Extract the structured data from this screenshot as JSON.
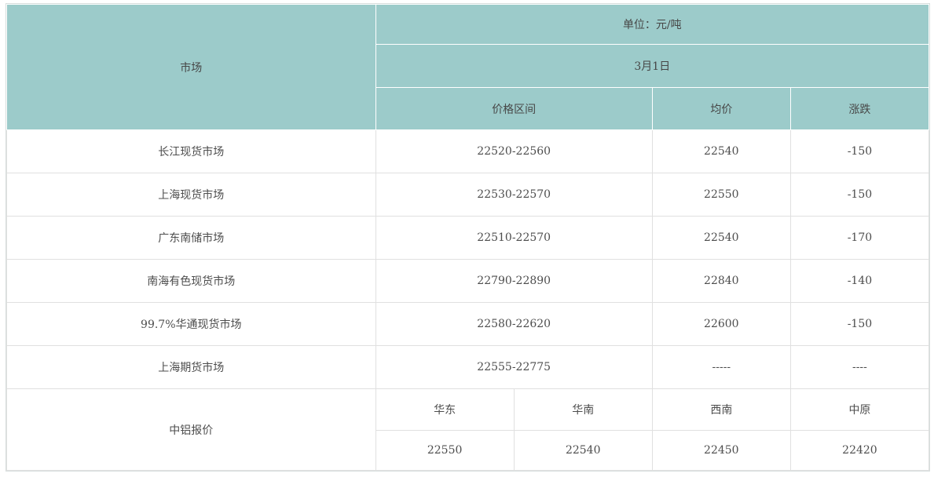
{
  "chart_data": {
    "type": "table",
    "unit_label": "单位：元/吨",
    "date_label": "3月1日",
    "market_header": "市场",
    "sub_headers": {
      "range": "价格区间",
      "avg": "均价",
      "change": "涨跌"
    },
    "rows": [
      {
        "market": "长江现货市场",
        "range": "22520-22560",
        "avg": "22540",
        "change": "-150"
      },
      {
        "market": "上海现货市场",
        "range": "22530-22570",
        "avg": "22550",
        "change": "-150"
      },
      {
        "market": "广东南储市场",
        "range": "22510-22570",
        "avg": "22540",
        "change": "-170"
      },
      {
        "market": "南海有色现货市场",
        "range": "22790-22890",
        "avg": "22840",
        "change": "-140"
      },
      {
        "market": "99.7%华通现货市场",
        "range": "22580-22620",
        "avg": "22600",
        "change": "-150"
      },
      {
        "market": "上海期货市场",
        "range": "22555-22775",
        "avg": "-----",
        "change": "----"
      }
    ],
    "chinalco": {
      "label": "中铝报价",
      "regions": [
        "华东",
        "华南",
        "西南",
        "中原"
      ],
      "prices": [
        "22550",
        "22540",
        "22450",
        "22420"
      ]
    },
    "colors": {
      "header_bg": "#9ccbca",
      "header_divider": "#ffffff",
      "body_divider": "#e0e0e0",
      "outer_border": "#d7dedd",
      "text": "#4d4d4d",
      "body_bg": "#ffffff"
    }
  }
}
